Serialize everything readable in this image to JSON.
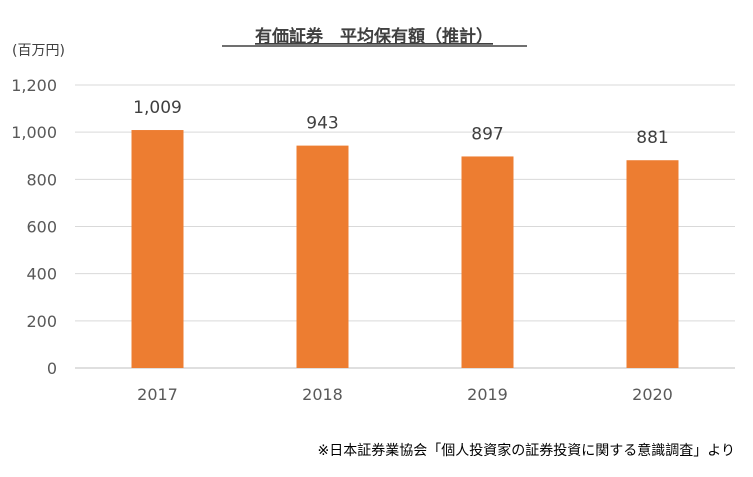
{
  "chart_data": {
    "type": "bar",
    "title": "有価証券　平均保有額（推計）",
    "unit_label": "(百万円)",
    "categories": [
      "2017",
      "2018",
      "2019",
      "2020"
    ],
    "values": [
      1009,
      943,
      897,
      881
    ],
    "data_labels": [
      "1,009",
      "943",
      "897",
      "881"
    ],
    "ylim": [
      0,
      1200
    ],
    "yticks": [
      0,
      200,
      400,
      600,
      800,
      1000,
      1200
    ],
    "ytick_labels": [
      "0",
      "200",
      "400",
      "600",
      "800",
      "1,000",
      "1,200"
    ],
    "grid": true,
    "bar_color": "#ed7d31"
  },
  "source_note": "※日本証券業協会「個人投資家の証券投資に関する意識調査」より"
}
